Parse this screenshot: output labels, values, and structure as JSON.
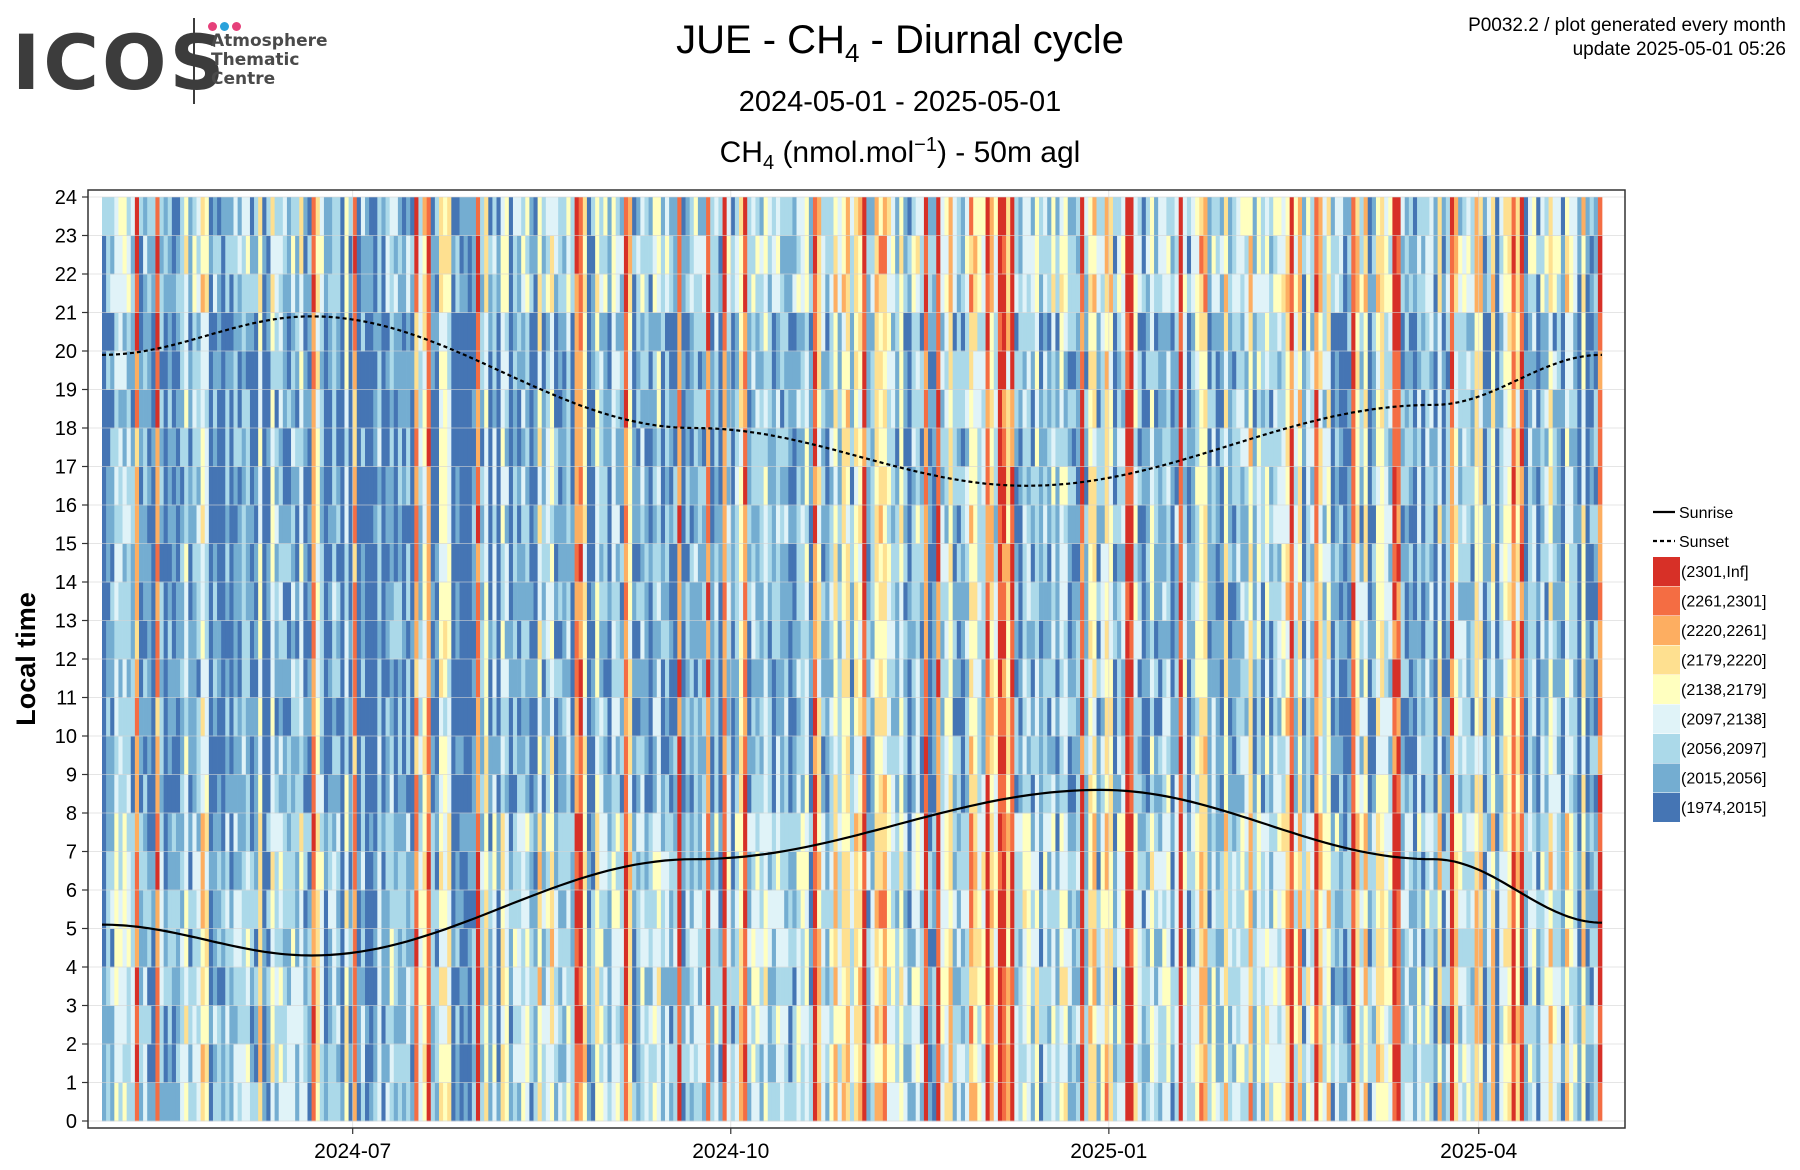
{
  "logo": {
    "wordmark": "ICOS",
    "subtitle": "Atmosphere\nThematic\nCentre",
    "dot_colors": [
      "#e6407a",
      "#2aa2db",
      "#e6407a"
    ]
  },
  "meta": {
    "line1": "P0032.2 / plot generated every month",
    "line2": "update  2025-05-01 05:26"
  },
  "header": {
    "title_prefix": "JUE - CH",
    "title_sub": "4",
    "title_suffix": " - Diurnal cycle",
    "period": "2024-05-01 - 2025-05-01",
    "sub_prefix": "CH",
    "sub_sub": "4",
    "sub_mid": " (nmol.mol",
    "sub_sup": "−1",
    "sub_suffix": ") - 50m agl"
  },
  "chart_data": {
    "type": "heatmap",
    "ylabel": "Local time",
    "x_range": [
      "2024-05-01",
      "2025-05-01"
    ],
    "y_range": [
      0,
      24
    ],
    "x_ticks": [
      "2024-07",
      "2024-10",
      "2025-01",
      "2025-04"
    ],
    "y_ticks": [
      0,
      1,
      2,
      3,
      4,
      5,
      6,
      7,
      8,
      9,
      10,
      11,
      12,
      13,
      14,
      15,
      16,
      17,
      18,
      19,
      20,
      21,
      22,
      23,
      24
    ],
    "grid": true,
    "legend_position": "right",
    "color_bins": [
      {
        "label": "(2301,Inf]",
        "color": "#d73027"
      },
      {
        "label": "(2261,2301]",
        "color": "#f46d43"
      },
      {
        "label": "(2220,2261]",
        "color": "#fdae61"
      },
      {
        "label": "(2179,2220]",
        "color": "#fee090"
      },
      {
        "label": "(2138,2179]",
        "color": "#ffffbf"
      },
      {
        "label": "(2097,2138]",
        "color": "#e0f3f8"
      },
      {
        "label": "(2056,2097]",
        "color": "#abd9e9"
      },
      {
        "label": "(2015,2056]",
        "color": "#74add1"
      },
      {
        "label": "(1974,2015]",
        "color": "#4575b4"
      }
    ],
    "lines": [
      {
        "name": "Sunrise",
        "style": "solid",
        "points": [
          [
            "2024-05-01",
            5.1
          ],
          [
            "2024-06-21",
            4.3
          ],
          [
            "2024-09-22",
            6.8
          ],
          [
            "2024-12-30",
            8.6
          ],
          [
            "2025-03-21",
            6.8
          ],
          [
            "2025-05-01",
            5.15
          ]
        ]
      },
      {
        "name": "Sunset",
        "style": "dashed",
        "points": [
          [
            "2024-05-01",
            19.9
          ],
          [
            "2024-06-21",
            20.9
          ],
          [
            "2024-09-22",
            18.0
          ],
          [
            "2024-12-12",
            16.5
          ],
          [
            "2025-03-21",
            18.6
          ],
          [
            "2025-05-01",
            19.9
          ]
        ]
      }
    ],
    "heatmap_note": "daily columns of hourly CH4 bins (values not individually readable)"
  }
}
